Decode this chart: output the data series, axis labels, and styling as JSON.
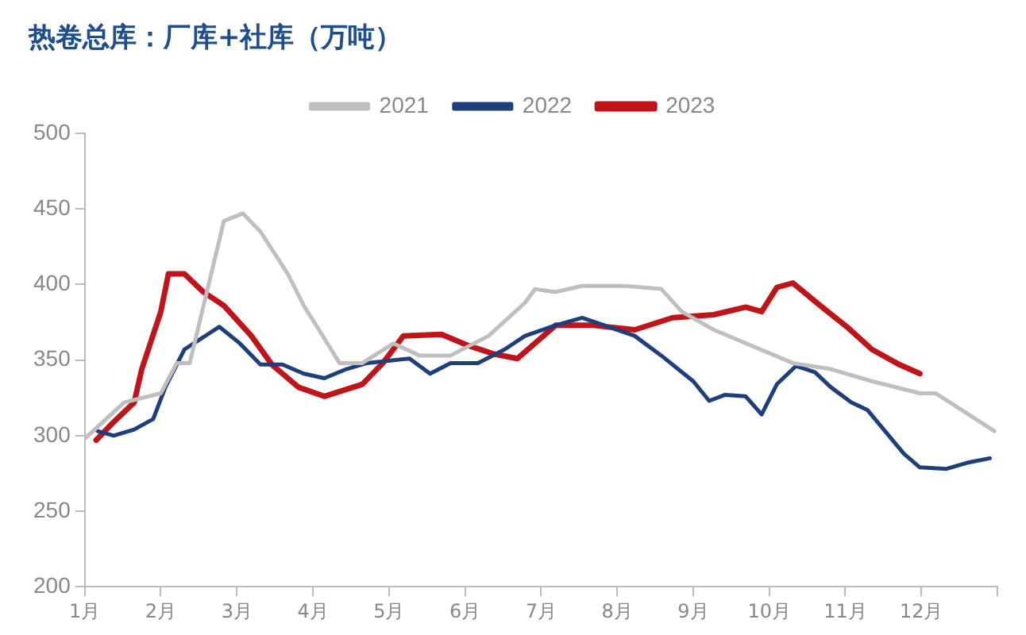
{
  "chart_data": {
    "type": "line",
    "title": "热卷总库：厂库+社库（万吨）",
    "legend": "top",
    "grid": false,
    "marker": "none",
    "line_style": "solid",
    "xlim": [
      1,
      13
    ],
    "xticks": [
      {
        "value": 1,
        "label": "1月"
      },
      {
        "value": 2,
        "label": "2月"
      },
      {
        "value": 3,
        "label": "3月"
      },
      {
        "value": 4,
        "label": "4月"
      },
      {
        "value": 5,
        "label": "5月"
      },
      {
        "value": 6,
        "label": "6月"
      },
      {
        "value": 7,
        "label": "7月"
      },
      {
        "value": 8,
        "label": "8月"
      },
      {
        "value": 9,
        "label": "9月"
      },
      {
        "value": 10,
        "label": "10月"
      },
      {
        "value": 11,
        "label": "11月"
      },
      {
        "value": 12,
        "label": "12月"
      },
      {
        "value": 13,
        "label": null
      }
    ],
    "ylim": [
      200,
      500
    ],
    "yticks": [
      200,
      250,
      300,
      350,
      400,
      450,
      500
    ],
    "series": [
      {
        "name": "2021",
        "color": "#bfbfbf",
        "x": [
          1,
          1.52,
          2,
          2.21,
          2.38,
          2.83,
          3.08,
          3.31,
          3.67,
          3.88,
          4.08,
          4.35,
          4.65,
          5.06,
          5.4,
          5.81,
          6.31,
          6.79,
          6.92,
          7.19,
          7.54,
          8.1,
          8.58,
          8.85,
          9.27,
          10.31,
          10.81,
          11.35,
          11.98,
          12.19,
          12.96
        ],
        "values": [
          298,
          322,
          328,
          348,
          348,
          442,
          447,
          435,
          407,
          386,
          370,
          348,
          348,
          361,
          353,
          353,
          366,
          388,
          397,
          395,
          399,
          399,
          397,
          382,
          370,
          348,
          344,
          336,
          328,
          328,
          303
        ]
      },
      {
        "name": "2022",
        "color": "#1f3f7a",
        "x": [
          1.17,
          1.38,
          1.65,
          1.9,
          2.06,
          2.31,
          2.77,
          3.04,
          3.31,
          3.6,
          3.88,
          4.15,
          4.44,
          4.71,
          5.27,
          5.54,
          5.81,
          6.17,
          6.52,
          6.79,
          7.19,
          7.54,
          8.23,
          8.58,
          9,
          9.21,
          9.42,
          9.69,
          9.9,
          10.1,
          10.35,
          10.6,
          10.81,
          11.08,
          11.29,
          11.77,
          11.98,
          12.33,
          12.6,
          12.9
        ],
        "values": [
          303,
          300,
          304,
          311,
          332,
          357,
          372,
          361,
          347,
          347,
          341,
          338,
          344,
          348,
          351,
          341,
          348,
          348,
          357,
          366,
          373,
          378,
          366,
          353,
          336,
          323,
          327,
          326,
          314,
          334,
          346,
          342,
          332,
          322,
          317,
          288,
          279,
          278,
          282,
          285
        ]
      },
      {
        "name": "2023",
        "color": "#c0141b",
        "x": [
          1.15,
          1.38,
          1.65,
          1.75,
          2,
          2.1,
          2.31,
          2.56,
          2.83,
          3.19,
          3.46,
          3.81,
          4.15,
          4.65,
          4.92,
          5.19,
          5.69,
          6.02,
          6.38,
          6.69,
          7.19,
          7.69,
          8.23,
          8.73,
          9.27,
          9.69,
          9.9,
          10.1,
          10.31,
          10.67,
          11.02,
          11.35,
          11.71,
          11.98
        ],
        "values": [
          297,
          309,
          322,
          344,
          382,
          407,
          407,
          395,
          386,
          366,
          347,
          332,
          326,
          334,
          348,
          366,
          367,
          360,
          354,
          351,
          373,
          373,
          370,
          378,
          380,
          385,
          382,
          398,
          401,
          386,
          372,
          357,
          347,
          341
        ]
      }
    ]
  }
}
